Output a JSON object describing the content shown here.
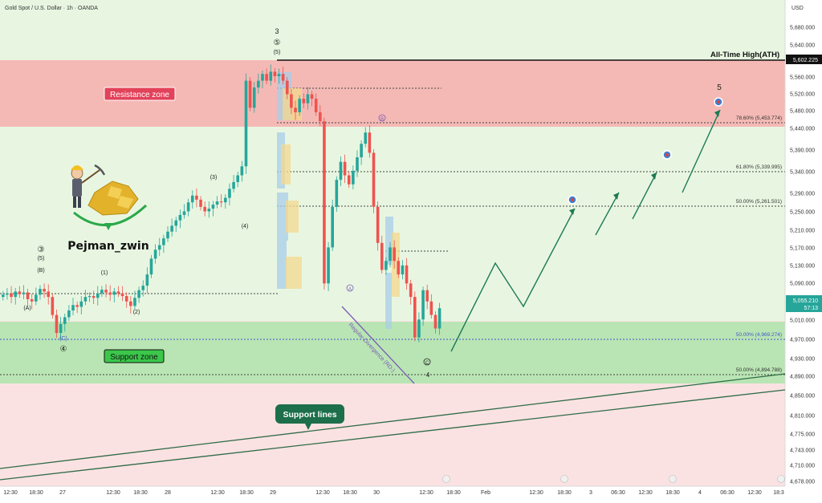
{
  "header": {
    "symbol_title": "Gold Spot / U.S. Dollar · 1h · OANDA",
    "currency": "USD"
  },
  "price_axis": {
    "ticks": [
      "5,680.000",
      "5,640.000",
      "5,602.225",
      "5,560.000",
      "5,520.000",
      "5,480.000",
      "5,440.000",
      "5,390.000",
      "5,340.000",
      "5,290.000",
      "5,250.000",
      "5,210.000",
      "5,170.000",
      "5,130.000",
      "5,090.000",
      "5,055.210",
      "5,010.000",
      "4,970.000",
      "4,930.000",
      "4,890.000",
      "4,850.000",
      "4,810.000",
      "4,775.000",
      "4,743.000",
      "4,710.000",
      "4,678.000"
    ],
    "ath_label": "5,602.225",
    "last_price": "5,055.210",
    "countdown": "57:13"
  },
  "time_axis": {
    "labels": [
      "12:30",
      "18:30",
      "27",
      "12:30",
      "18:30",
      "28",
      "12:30",
      "18:30",
      "29",
      "12:30",
      "18:30",
      "30",
      "12:30",
      "18:30",
      "Feb",
      "12:30",
      "18:30",
      "3",
      "06:30",
      "12:30",
      "18:30",
      "4",
      "06:30",
      "12:30",
      "18:3"
    ]
  },
  "annotations": {
    "ath": "All-Time High(ATH)",
    "resistance_zone": "Resistance zone",
    "support_zone": "Support zone",
    "support_lines": "Support lines",
    "author": "Pejman_zwin",
    "divergence": "Regular Divergence (RD-)",
    "fib_786": "78.60% (5,453.774)",
    "fib_618": "61.80% (5,339.995)",
    "fib_500": "50.00% (5,261.501)",
    "fib_500_low1": "50.00% (4,969.274)",
    "fib_500_low2": "50.00% (4,894.788)",
    "wave_labels": {
      "w3_top": "3",
      "w5_circ_top": "⑤",
      "w5_paren_top": "(5)",
      "w3_left": "③",
      "w5_left": "(5)",
      "wB_left": "(B)",
      "wA_left": "(A)",
      "wC_left": "(C)",
      "w4_left": "④",
      "w1": "(1)",
      "w2": "(2)",
      "w3_mid": "(3)",
      "w4_mid": "(4)",
      "wB_right": "B",
      "wA_right": "A",
      "wC_right": "C",
      "w4_right": "4",
      "w5_target": "5"
    }
  },
  "colors": {
    "bull": "#26a69a",
    "bear": "#ef5350",
    "resistance": "#f4b9b5",
    "support": "#b9e5b4",
    "upper_bg": "#e8f6e1",
    "lower_bg": "#fbe2e2",
    "projection": "#1e7a55",
    "last_price_bg": "#26a69a"
  },
  "chart_data": {
    "type": "candlestick",
    "title": "Gold Spot / U.S. Dollar · 1h · OANDA",
    "ylim": [
      4660,
      5700
    ],
    "ath": 5602.225,
    "last_price": 5055.21,
    "resistance_zone": [
      5445,
      5602
    ],
    "support_zone": [
      4876,
      5012
    ],
    "fib_levels": [
      5453.774,
      5339.995,
      5261.501,
      4969.274,
      4894.788
    ],
    "projection_path": [
      4950,
      5140,
      5040,
      5255,
      5170,
      5290,
      5230,
      5340,
      5285,
      5480
    ]
  }
}
